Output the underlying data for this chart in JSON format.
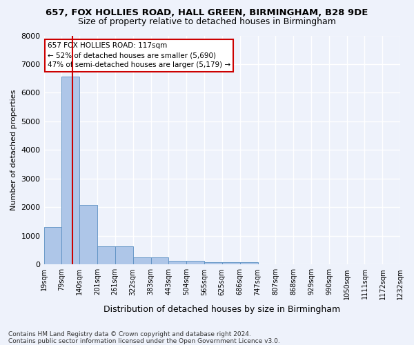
{
  "title1": "657, FOX HOLLIES ROAD, HALL GREEN, BIRMINGHAM, B28 9DE",
  "title2": "Size of property relative to detached houses in Birmingham",
  "xlabel": "Distribution of detached houses by size in Birmingham",
  "ylabel": "Number of detached properties",
  "footnote1": "Contains HM Land Registry data © Crown copyright and database right 2024.",
  "footnote2": "Contains public sector information licensed under the Open Government Licence v3.0.",
  "annotation_title": "657 FOX HOLLIES ROAD: 117sqm",
  "annotation_line1": "← 52% of detached houses are smaller (5,690)",
  "annotation_line2": "47% of semi-detached houses are larger (5,179) →",
  "property_size_sqm": 117,
  "bin_edges": [
    19,
    79,
    140,
    201,
    261,
    322,
    383,
    443,
    504,
    565,
    625,
    686,
    747,
    807,
    868,
    929,
    990,
    1050,
    1111,
    1172,
    1232
  ],
  "bin_labels": [
    "19sqm",
    "79sqm",
    "140sqm",
    "201sqm",
    "261sqm",
    "322sqm",
    "383sqm",
    "443sqm",
    "504sqm",
    "565sqm",
    "625sqm",
    "686sqm",
    "747sqm",
    "807sqm",
    "868sqm",
    "929sqm",
    "990sqm",
    "1050sqm",
    "1111sqm",
    "1172sqm",
    "1232sqm"
  ],
  "bar_heights": [
    1310,
    6560,
    2080,
    640,
    630,
    250,
    250,
    120,
    120,
    70,
    70,
    70,
    0,
    0,
    0,
    0,
    0,
    0,
    0,
    0
  ],
  "bar_color": "#aec6e8",
  "bar_edge_color": "#5a8fc2",
  "vline_color": "#cc0000",
  "vline_x": 117,
  "ylim": [
    0,
    8000
  ],
  "yticks": [
    0,
    1000,
    2000,
    3000,
    4000,
    5000,
    6000,
    7000,
    8000
  ],
  "bg_color": "#eef2fb",
  "grid_color": "#ffffff",
  "annotation_box_color": "#ffffff",
  "annotation_box_edge": "#cc0000",
  "title1_fontsize": 9.5,
  "title2_fontsize": 9,
  "xlabel_fontsize": 9,
  "ylabel_fontsize": 8,
  "footnote_fontsize": 6.5,
  "tick_labelsize": 8,
  "xtick_labelsize": 7
}
